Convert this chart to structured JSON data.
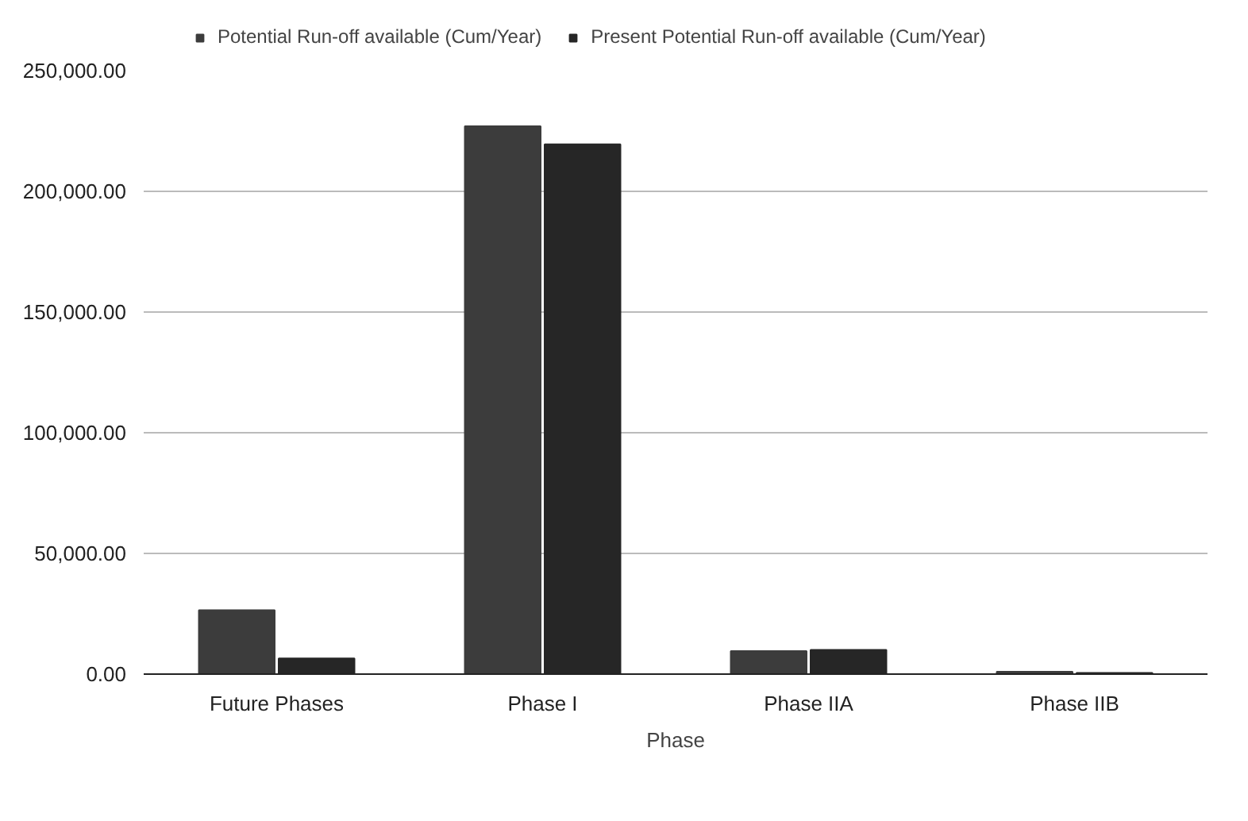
{
  "chart_data": {
    "type": "bar",
    "xlabel": "Phase",
    "categories": [
      "Future Phases",
      "Phase I",
      "Phase IIA",
      "Phase IIB"
    ],
    "series": [
      {
        "name": "Potential Run-off available (Cum/Year)",
        "color": "#3c3c3c",
        "values": [
          26500,
          227000,
          9500,
          1000
        ]
      },
      {
        "name": "Present Potential Run-off available (Cum/Year)",
        "color": "#262626",
        "values": [
          6500,
          219500,
          10000,
          500
        ]
      }
    ],
    "ylim": [
      0,
      250000
    ],
    "yticks": [
      {
        "value": 0,
        "label": "0.00"
      },
      {
        "value": 50000,
        "label": "50,000.00"
      },
      {
        "value": 100000,
        "label": "100,000.00"
      },
      {
        "value": 150000,
        "label": "150,000.00"
      },
      {
        "value": 200000,
        "label": "200,000.00"
      },
      {
        "value": 250000,
        "label": "250,000.00"
      }
    ],
    "grid": "y",
    "legend": "top"
  }
}
